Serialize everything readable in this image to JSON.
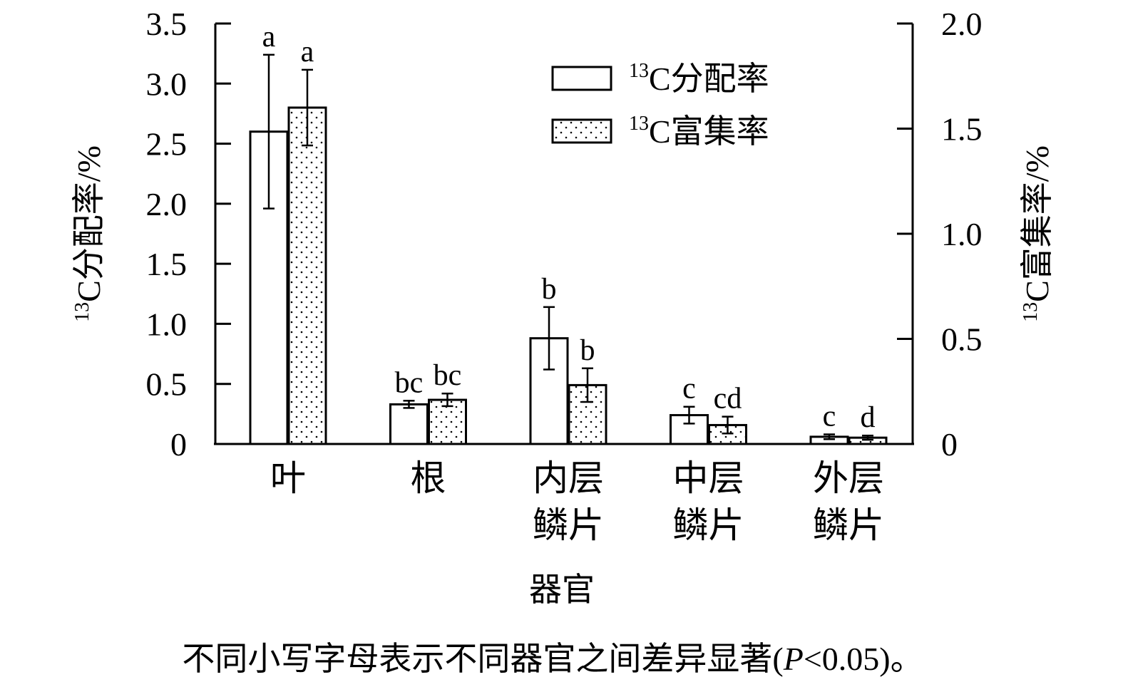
{
  "chart_data": {
    "type": "bar",
    "categories": [
      [
        "叶"
      ],
      [
        "根"
      ],
      [
        "内层",
        "鳞片"
      ],
      [
        "中层",
        "鳞片"
      ],
      [
        "外层",
        "鳞片"
      ]
    ],
    "xlabel": "器官",
    "left_axis": {
      "label_sup": "13",
      "label_main": "C分配率/%",
      "ylim": [
        0,
        3.5
      ],
      "ticks": [
        0,
        0.5,
        1.0,
        1.5,
        2.0,
        2.5,
        3.0,
        3.5
      ],
      "tick_labels": [
        "0",
        "0.5",
        "1.0",
        "1.5",
        "2.0",
        "2.5",
        "3.0",
        "3.5"
      ]
    },
    "right_axis": {
      "label_sup": "13",
      "label_main": "C富集率/%",
      "ylim": [
        0,
        2.0
      ],
      "ticks": [
        0,
        0.5,
        1.0,
        1.5,
        2.0
      ],
      "tick_labels": [
        "0",
        "0.5",
        "1.0",
        "1.5",
        "2.0"
      ]
    },
    "series": [
      {
        "name_sup": "13",
        "name_main": "C分配率",
        "axis": "left",
        "fill": "open",
        "values": [
          2.6,
          0.33,
          0.88,
          0.24,
          0.06
        ],
        "errors": [
          0.64,
          0.03,
          0.26,
          0.07,
          0.02
        ],
        "letters": [
          "a",
          "bc",
          "b",
          "c",
          "c"
        ]
      },
      {
        "name_sup": "13",
        "name_main": "C富集率",
        "axis": "right",
        "fill": "dotted",
        "values": [
          1.6,
          0.21,
          0.28,
          0.09,
          0.03
        ],
        "errors": [
          0.18,
          0.03,
          0.08,
          0.04,
          0.01
        ],
        "letters": [
          "a",
          "bc",
          "b",
          "cd",
          "d"
        ]
      }
    ],
    "legend": "top-right",
    "grid": false
  },
  "caption": {
    "prefix": "不同小写字母表示不同器官之间差异显著(",
    "p_symbol": "P",
    "suffix": "<0.05)。"
  }
}
